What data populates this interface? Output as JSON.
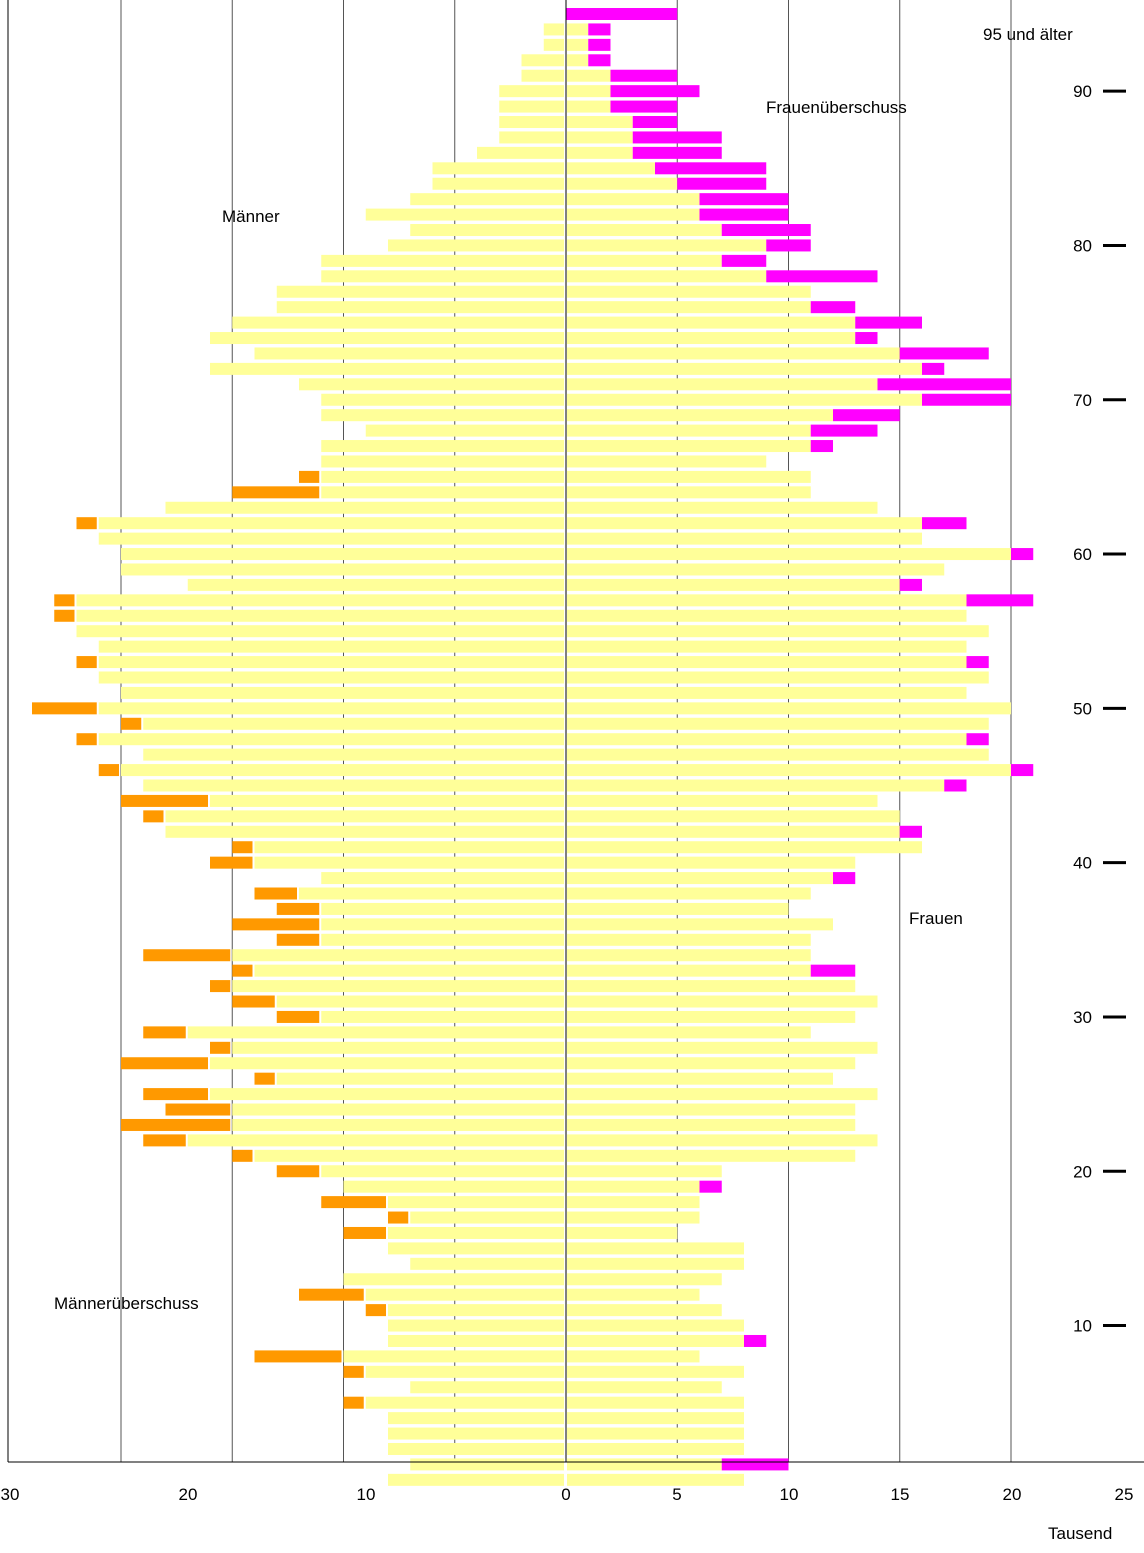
{
  "chart_data": {
    "type": "bar",
    "subtype": "population-pyramid",
    "ages": [
      0,
      1,
      2,
      3,
      4,
      5,
      6,
      7,
      8,
      9,
      10,
      11,
      12,
      13,
      14,
      15,
      16,
      17,
      18,
      19,
      20,
      21,
      22,
      23,
      24,
      25,
      26,
      27,
      28,
      29,
      30,
      31,
      32,
      33,
      34,
      35,
      36,
      37,
      38,
      39,
      40,
      41,
      42,
      43,
      44,
      45,
      46,
      47,
      48,
      49,
      50,
      51,
      52,
      53,
      54,
      55,
      56,
      57,
      58,
      59,
      60,
      61,
      62,
      63,
      64,
      65,
      66,
      67,
      68,
      69,
      70,
      71,
      72,
      73,
      74,
      75,
      76,
      77,
      78,
      79,
      80,
      81,
      82,
      83,
      84,
      85,
      86,
      87,
      88,
      89,
      90,
      91,
      92,
      93,
      94,
      95
    ],
    "series": [
      {
        "name": "Männer",
        "values": [
          8,
          7,
          8,
          8,
          8,
          9,
          7,
          9,
          10,
          8,
          8,
          8,
          9,
          10,
          7,
          8,
          8,
          7,
          8,
          10,
          11,
          14,
          17,
          15,
          15,
          16,
          13,
          16,
          15,
          17,
          11,
          13,
          15,
          14,
          15,
          11,
          11,
          11,
          12,
          11,
          14,
          14,
          18,
          18,
          16,
          19,
          20,
          19,
          21,
          19,
          21,
          20,
          21,
          21,
          21,
          22,
          22,
          22,
          17,
          20,
          20,
          21,
          21,
          18,
          11,
          11,
          11,
          11,
          9,
          11,
          11,
          12,
          16,
          14,
          16,
          15,
          13,
          13,
          11,
          11,
          8,
          7,
          9,
          7,
          6,
          6,
          4,
          3,
          3,
          3,
          3,
          2,
          2,
          1,
          1,
          0
        ],
        "color": "#ffff99"
      },
      {
        "name": "Frauen",
        "values": [
          8,
          7,
          8,
          8,
          8,
          8,
          7,
          8,
          6,
          8,
          8,
          7,
          6,
          7,
          8,
          8,
          5,
          6,
          6,
          6,
          7,
          13,
          14,
          13,
          13,
          14,
          12,
          13,
          14,
          11,
          13,
          14,
          13,
          11,
          11,
          11,
          12,
          10,
          11,
          12,
          13,
          16,
          15,
          15,
          14,
          17,
          20,
          19,
          18,
          19,
          20,
          18,
          19,
          18,
          18,
          19,
          18,
          18,
          15,
          17,
          20,
          16,
          16,
          14,
          11,
          11,
          9,
          11,
          11,
          12,
          16,
          14,
          16,
          15,
          13,
          13,
          11,
          11,
          9,
          7,
          9,
          7,
          6,
          6,
          5,
          4,
          3,
          3,
          3,
          2,
          2,
          2,
          1,
          1,
          1,
          0
        ],
        "color": "#ffff99"
      },
      {
        "name": "Männerüberschuss",
        "values": [
          0,
          0,
          0,
          0,
          0,
          1,
          0,
          1,
          4,
          0,
          0,
          1,
          3,
          0,
          0,
          0,
          2,
          1,
          3,
          0,
          2,
          1,
          2,
          5,
          3,
          3,
          1,
          4,
          1,
          2,
          2,
          2,
          1,
          1,
          4,
          2,
          4,
          2,
          2,
          0,
          2,
          1,
          0,
          1,
          4,
          0,
          1,
          0,
          1,
          1,
          3,
          0,
          0,
          1,
          0,
          0,
          1,
          1,
          0,
          0,
          0,
          0,
          1,
          0,
          4,
          1,
          0,
          0,
          0,
          0,
          0,
          0,
          0,
          0,
          0,
          0,
          0,
          0,
          0,
          0,
          0,
          0,
          0,
          0,
          0,
          0,
          0,
          0,
          0,
          0,
          0,
          0,
          0,
          0,
          0,
          0
        ],
        "color": "#ff9900"
      },
      {
        "name": "Frauenüberschuss",
        "values": [
          0,
          3,
          0,
          0,
          0,
          0,
          0,
          0,
          0,
          1,
          0,
          0,
          0,
          0,
          0,
          0,
          0,
          0,
          0,
          1,
          0,
          0,
          0,
          0,
          0,
          0,
          0,
          0,
          0,
          0,
          0,
          0,
          0,
          2,
          0,
          0,
          0,
          0,
          0,
          1,
          0,
          0,
          1,
          0,
          0,
          1,
          1,
          0,
          1,
          0,
          0,
          0,
          0,
          1,
          0,
          0,
          0,
          3,
          1,
          0,
          1,
          0,
          2,
          0,
          0,
          0,
          0,
          1,
          3,
          3,
          4,
          6,
          1,
          4,
          1,
          3,
          2,
          0,
          5,
          2,
          2,
          4,
          4,
          4,
          4,
          5,
          4,
          4,
          2,
          3,
          4,
          3,
          1,
          1,
          1,
          5
        ],
        "color": "#ff00ff"
      }
    ],
    "x_ticks_left": [
      "30",
      "20",
      "10",
      "0"
    ],
    "x_ticks_right": [
      "5",
      "10",
      "15",
      "20",
      "25"
    ],
    "y_ticks": [
      "10",
      "20",
      "30",
      "40",
      "50",
      "60",
      "70",
      "80",
      "90"
    ],
    "xlim_left": [
      0,
      25
    ],
    "xlim_right": [
      0,
      25
    ],
    "unit_label": "Tausend",
    "annotations": {
      "top_age": "95 und älter",
      "male_label": "Männer",
      "female_label": "Frauen",
      "male_surplus": "Männerüberschuss",
      "female_surplus": "Frauenüberschuss"
    },
    "grid": true
  }
}
